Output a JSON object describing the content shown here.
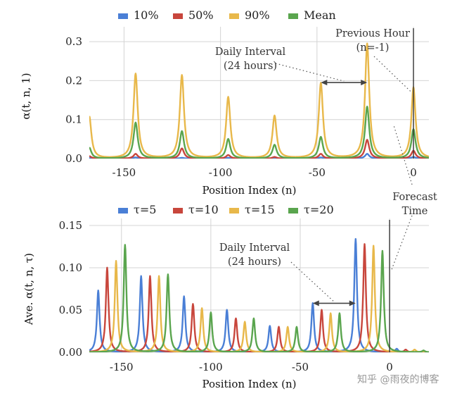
{
  "chart_data": [
    {
      "type": "line",
      "xlabel": "Position Index (n)",
      "ylabel": "α(t, n, 1)",
      "xlim": [
        -168,
        8
      ],
      "ylim": [
        0,
        0.32
      ],
      "xticks": [
        -150,
        -100,
        -50,
        0
      ],
      "xtick_labels": [
        "-150",
        "-100",
        "-50",
        "0"
      ],
      "yticks": [
        0,
        0.1,
        0.2,
        0.3
      ],
      "ytick_labels": [
        "0.0",
        "0.1",
        "0.2",
        "0.3"
      ],
      "grid": true,
      "legend": "top",
      "peak_width": 1.3,
      "series": [
        {
          "name": "10%",
          "color": "#4a7fd6",
          "peaks": [
            [
              -168,
              0.002
            ],
            [
              -144,
              0.003
            ],
            [
              -120,
              0.002
            ],
            [
              -96,
              0.002
            ],
            [
              -72,
              0.001
            ],
            [
              -48,
              0.003
            ],
            [
              -24,
              0.012
            ],
            [
              0,
              0.004
            ]
          ]
        },
        {
          "name": "50%",
          "color": "#c8463c",
          "peaks": [
            [
              -168,
              0.006
            ],
            [
              -144,
              0.012
            ],
            [
              -120,
              0.026
            ],
            [
              -96,
              0.009
            ],
            [
              -72,
              0.004
            ],
            [
              -48,
              0.012
            ],
            [
              -24,
              0.048
            ],
            [
              0,
              0.02
            ]
          ]
        },
        {
          "name": "90%",
          "color": "#e8b84a",
          "peaks": [
            [
              -168,
              0.108
            ],
            [
              -144,
              0.217
            ],
            [
              -120,
              0.213
            ],
            [
              -96,
              0.157
            ],
            [
              -72,
              0.109
            ],
            [
              -48,
              0.193
            ],
            [
              -24,
              0.294
            ],
            [
              0,
              0.182
            ]
          ]
        },
        {
          "name": "Mean",
          "color": "#5aa54e",
          "peaks": [
            [
              -168,
              0.028
            ],
            [
              -144,
              0.092
            ],
            [
              -120,
              0.07
            ],
            [
              -96,
              0.05
            ],
            [
              -72,
              0.035
            ],
            [
              -48,
              0.055
            ],
            [
              -24,
              0.133
            ],
            [
              0,
              0.075
            ]
          ]
        }
      ],
      "vline_x": 0,
      "annotations": [
        {
          "id": "daily",
          "text": [
            "Daily Interval",
            "(24 hours)"
          ],
          "from_x": -48,
          "to_x": -24,
          "at_y": 0.195
        },
        {
          "id": "prev",
          "text": [
            "Previous Hour",
            "(n=-1)"
          ],
          "target_x": -1,
          "target_y": 0.17
        }
      ]
    },
    {
      "type": "line",
      "xlabel": "Position Index (n)",
      "ylabel": "Ave. α(t, n, τ)",
      "xlim": [
        -168,
        22
      ],
      "ylim": [
        0,
        0.15
      ],
      "xticks": [
        -150,
        -100,
        -50,
        0
      ],
      "xtick_labels": [
        "-150",
        "-100",
        "-50",
        "0"
      ],
      "yticks": [
        0,
        0.05,
        0.1,
        0.15
      ],
      "ytick_labels": [
        "0.00",
        "0.05",
        "0.10",
        "0.15"
      ],
      "grid": true,
      "legend": "top",
      "peak_width": 0.9,
      "series": [
        {
          "name": "τ=5",
          "color": "#4a7fd6",
          "peaks": [
            [
              -163,
              0.073
            ],
            [
              -139,
              0.09
            ],
            [
              -115,
              0.066
            ],
            [
              -91,
              0.05
            ],
            [
              -67,
              0.031
            ],
            [
              -43,
              0.058
            ],
            [
              -19,
              0.134
            ],
            [
              4,
              0.004
            ]
          ]
        },
        {
          "name": "τ=10",
          "color": "#c8463c",
          "peaks": [
            [
              -158,
              0.1
            ],
            [
              -134,
              0.09
            ],
            [
              -110,
              0.057
            ],
            [
              -86,
              0.04
            ],
            [
              -62,
              0.03
            ],
            [
              -38,
              0.05
            ],
            [
              -14,
              0.128
            ],
            [
              9,
              0.003
            ]
          ]
        },
        {
          "name": "τ=15",
          "color": "#e8b84a",
          "peaks": [
            [
              -153,
              0.108
            ],
            [
              -129,
              0.09
            ],
            [
              -105,
              0.052
            ],
            [
              -81,
              0.036
            ],
            [
              -57,
              0.03
            ],
            [
              -33,
              0.046
            ],
            [
              -9,
              0.126
            ],
            [
              14,
              0.003
            ]
          ]
        },
        {
          "name": "τ=20",
          "color": "#5aa54e",
          "peaks": [
            [
              -148,
              0.127
            ],
            [
              -124,
              0.092
            ],
            [
              -100,
              0.047
            ],
            [
              -76,
              0.04
            ],
            [
              -52,
              0.03
            ],
            [
              -28,
              0.046
            ],
            [
              -4,
              0.12
            ],
            [
              19,
              0.002
            ]
          ]
        }
      ],
      "vline_x": 0,
      "annotations": [
        {
          "id": "daily",
          "text": [
            "Daily Interval",
            "(24 hours)"
          ],
          "from_x": -43,
          "to_x": -19,
          "at_y": 0.058
        },
        {
          "id": "forecast",
          "text": [
            "Forecast",
            "Time"
          ],
          "target_x": 0,
          "target_y": 0.15
        }
      ]
    }
  ],
  "watermark": "知乎 @雨夜的博客"
}
